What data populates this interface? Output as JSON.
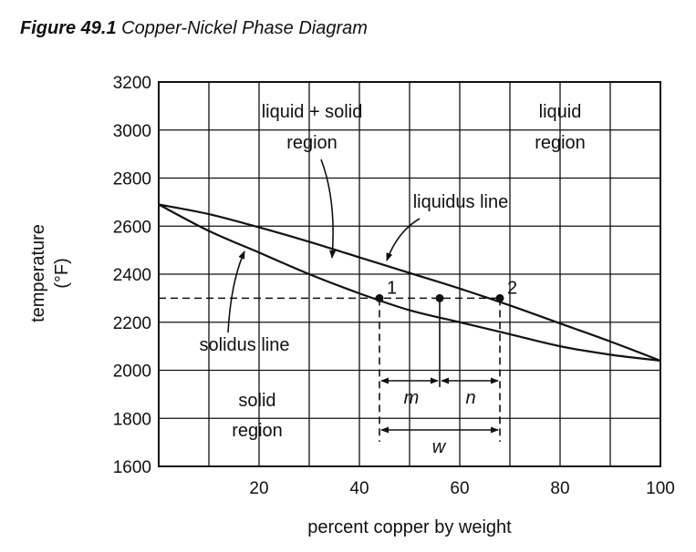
{
  "caption": {
    "number": "Figure 49.1",
    "title": "Copper-Nickel Phase Diagram"
  },
  "chart_data": {
    "type": "line",
    "xlabel": "percent copper by weight",
    "ylabel_line1": "temperature",
    "ylabel_line2": "(°F)",
    "xlim": [
      0,
      100
    ],
    "ylim": [
      1600,
      3200
    ],
    "x_ticks": [
      20,
      40,
      60,
      80,
      100
    ],
    "y_ticks": [
      1600,
      1800,
      2000,
      2200,
      2400,
      2600,
      2800,
      3000,
      3200
    ],
    "grid": true,
    "series": [
      {
        "name": "liquidus line",
        "x": [
          0,
          10,
          20,
          30,
          40,
          50,
          60,
          70,
          80,
          90,
          100
        ],
        "y": [
          2690,
          2650,
          2595,
          2535,
          2470,
          2405,
          2340,
          2270,
          2195,
          2120,
          2040
        ]
      },
      {
        "name": "solidus line",
        "x": [
          0,
          10,
          20,
          30,
          40,
          50,
          60,
          70,
          80,
          90,
          100
        ],
        "y": [
          2690,
          2580,
          2490,
          2400,
          2320,
          2250,
          2200,
          2150,
          2100,
          2065,
          2040
        ]
      }
    ],
    "reference_temperature": 2300,
    "points": [
      {
        "label": "1",
        "x": 44,
        "y": 2300
      },
      {
        "label": "",
        "x": 56,
        "y": 2300
      },
      {
        "label": "2",
        "x": 68,
        "y": 2300
      }
    ],
    "annotations": {
      "liquid_solid_line1": "liquid + solid",
      "liquid_solid_line2": "region",
      "liquid_line1": "liquid",
      "liquid_line2": "region",
      "solid_line1": "solid",
      "solid_line2": "region",
      "liquidus": "liquidus line",
      "solidus": "solidus line",
      "m": "m",
      "n": "n",
      "w": "w"
    }
  }
}
